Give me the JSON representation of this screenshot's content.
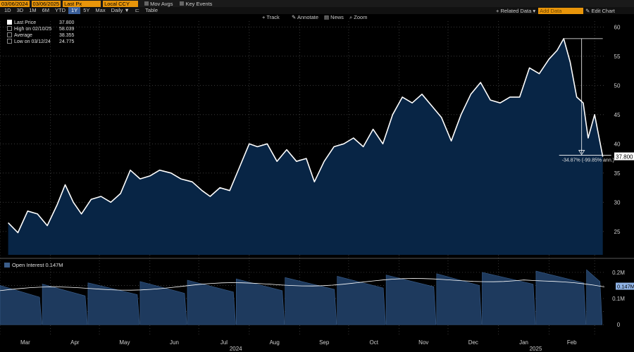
{
  "toolbar": {
    "start_date": "03/06/2024",
    "end_date": "03/06/2025",
    "field": "Last Px",
    "currency": "Local CCY",
    "mov_avgs": "Mov Avgs",
    "key_events": "Key Events",
    "ranges": [
      "1D",
      "3D",
      "1M",
      "6M",
      "YTD",
      "1Y",
      "5Y",
      "Max"
    ],
    "selected_range": "1Y",
    "period": "Daily",
    "table": "Table",
    "related_data": "Related Data",
    "add_data": "Add Data",
    "edit_chart": "Edit Chart",
    "track": "Track",
    "annotate": "Annotate",
    "news": "News",
    "zoom": "Zoom"
  },
  "legend": {
    "last_price_label": "Last Price",
    "last_price_value": "37.800",
    "high_label": "High on 02/10/25",
    "high_value": "58.039",
    "average_label": "Average",
    "average_value": "38.355",
    "low_label": "Low on 03/12/24",
    "low_value": "24.775"
  },
  "annotation": {
    "change": "-34.87% (-99.85% ann.)",
    "last_value_badge": "37.800",
    "oi_badge": "0.147M"
  },
  "open_interest_label": "Open Interest 0.147M",
  "colors": {
    "fill": "#082545",
    "line": "#ffffff",
    "oi_fill": "#1e3a5e",
    "badge": "#ffffff"
  },
  "chart_data": [
    {
      "type": "area",
      "series": [
        {
          "name": "Last Price"
        }
      ],
      "x_months": [
        "Mar",
        "Apr",
        "May",
        "Jun",
        "Jul",
        "Aug",
        "Sep",
        "Oct",
        "Nov",
        "Dec",
        "Jan",
        "Feb"
      ],
      "x_years": [
        "2024",
        "2025"
      ],
      "yticks": [
        25,
        30,
        35,
        40,
        45,
        50,
        55,
        60
      ],
      "ylim": [
        21,
        61
      ],
      "points": [
        [
          "2024-03-06",
          26.5
        ],
        [
          "2024-03-12",
          24.8
        ],
        [
          "2024-03-18",
          28.5
        ],
        [
          "2024-03-24",
          28.0
        ],
        [
          "2024-03-30",
          26.0
        ],
        [
          "2024-04-05",
          29.5
        ],
        [
          "2024-04-10",
          33.0
        ],
        [
          "2024-04-15",
          30.0
        ],
        [
          "2024-04-20",
          28.0
        ],
        [
          "2024-04-26",
          30.5
        ],
        [
          "2024-05-02",
          31.0
        ],
        [
          "2024-05-08",
          30.0
        ],
        [
          "2024-05-14",
          31.5
        ],
        [
          "2024-05-20",
          35.5
        ],
        [
          "2024-05-26",
          34.0
        ],
        [
          "2024-06-01",
          34.5
        ],
        [
          "2024-06-07",
          35.5
        ],
        [
          "2024-06-14",
          35.0
        ],
        [
          "2024-06-20",
          34.0
        ],
        [
          "2024-06-27",
          33.5
        ],
        [
          "2024-07-03",
          32.0
        ],
        [
          "2024-07-08",
          31.0
        ],
        [
          "2024-07-14",
          32.5
        ],
        [
          "2024-07-20",
          32.0
        ],
        [
          "2024-07-26",
          36.0
        ],
        [
          "2024-08-01",
          40.0
        ],
        [
          "2024-08-06",
          39.5
        ],
        [
          "2024-08-12",
          40.0
        ],
        [
          "2024-08-18",
          37.0
        ],
        [
          "2024-08-24",
          39.0
        ],
        [
          "2024-08-30",
          37.0
        ],
        [
          "2024-09-05",
          37.5
        ],
        [
          "2024-09-10",
          33.5
        ],
        [
          "2024-09-16",
          37.0
        ],
        [
          "2024-09-22",
          39.5
        ],
        [
          "2024-09-28",
          40.0
        ],
        [
          "2024-10-04",
          41.0
        ],
        [
          "2024-10-10",
          39.5
        ],
        [
          "2024-10-16",
          42.5
        ],
        [
          "2024-10-22",
          40.0
        ],
        [
          "2024-10-28",
          45.0
        ],
        [
          "2024-11-03",
          48.0
        ],
        [
          "2024-11-09",
          47.0
        ],
        [
          "2024-11-15",
          48.5
        ],
        [
          "2024-11-21",
          46.5
        ],
        [
          "2024-11-27",
          44.5
        ],
        [
          "2024-12-03",
          40.5
        ],
        [
          "2024-12-09",
          45.0
        ],
        [
          "2024-12-15",
          48.5
        ],
        [
          "2024-12-21",
          50.5
        ],
        [
          "2024-12-27",
          47.5
        ],
        [
          "2025-01-02",
          47.0
        ],
        [
          "2025-01-08",
          48.0
        ],
        [
          "2025-01-14",
          48.0
        ],
        [
          "2025-01-20",
          53.0
        ],
        [
          "2025-01-26",
          52.0
        ],
        [
          "2025-02-01",
          54.5
        ],
        [
          "2025-02-06",
          56.0
        ],
        [
          "2025-02-10",
          58.0
        ],
        [
          "2025-02-14",
          54.0
        ],
        [
          "2025-02-18",
          48.0
        ],
        [
          "2025-02-22",
          47.0
        ],
        [
          "2025-02-25",
          41.0
        ],
        [
          "2025-03-01",
          45.0
        ],
        [
          "2025-03-06",
          37.8
        ]
      ]
    },
    {
      "type": "area",
      "series": [
        {
          "name": "Open Interest"
        }
      ],
      "yticks": [
        "0",
        "0.1M",
        "0.2M"
      ],
      "ylim": [
        -40000,
        240000
      ],
      "note_ticks": [
        0,
        50000,
        100000,
        150000,
        200000
      ]
    }
  ]
}
